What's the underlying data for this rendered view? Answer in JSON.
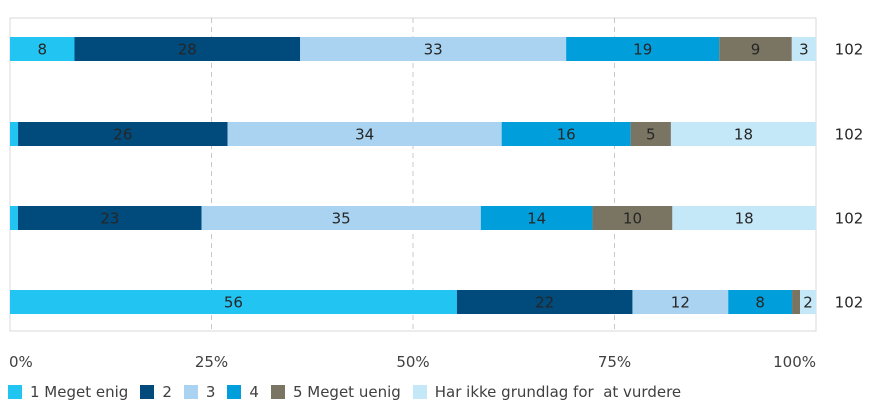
{
  "chart_data": {
    "type": "bar",
    "orientation": "horizontal",
    "stacked": "percent",
    "x_ticks": [
      "0%",
      "25%",
      "50%",
      "75%",
      "100%"
    ],
    "grid": true,
    "legend_position": "bottom",
    "series": [
      {
        "name": "1 Meget enig",
        "color": "#22c4f2"
      },
      {
        "name": "2",
        "color": "#004a7c"
      },
      {
        "name": "3",
        "color": "#a9d3f1"
      },
      {
        "name": "4",
        "color": "#009fdc"
      },
      {
        "name": "5 Meget uenig",
        "color": "#7a7563"
      },
      {
        "name": "Har ikke grundlag for  at vurdere",
        "color": "#c5e8f8"
      }
    ],
    "rows": [
      {
        "values": [
          8,
          28,
          33,
          19,
          9,
          3
        ],
        "labels": [
          "8",
          "28",
          "33",
          "19",
          "9",
          "3"
        ],
        "n": "102"
      },
      {
        "values": [
          1,
          26,
          34,
          16,
          5,
          18
        ],
        "labels": [
          "",
          "26",
          "34",
          "16",
          "5",
          "18"
        ],
        "n": "102"
      },
      {
        "values": [
          1,
          23,
          35,
          14,
          10,
          18
        ],
        "labels": [
          "",
          "23",
          "35",
          "14",
          "10",
          "18"
        ],
        "n": "102"
      },
      {
        "values": [
          56,
          22,
          12,
          8,
          1,
          2
        ],
        "labels": [
          "56",
          "22",
          "12",
          "8",
          "",
          "2"
        ],
        "n": "102"
      }
    ]
  }
}
